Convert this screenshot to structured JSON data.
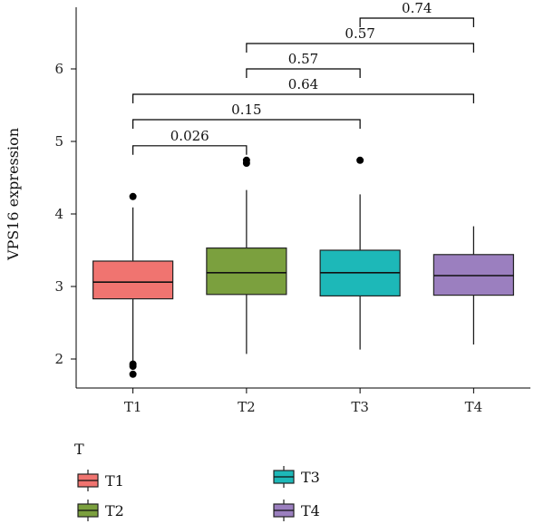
{
  "chart_data": {
    "type": "box",
    "title": "",
    "xlabel": "",
    "ylabel": "VPS16 expression",
    "ylim": [
      1.6,
      6.85
    ],
    "yticks": [
      2,
      3,
      4,
      5,
      6
    ],
    "categories": [
      "T1",
      "T2",
      "T3",
      "T4"
    ],
    "colors": [
      "#F07470",
      "#7BA03E",
      "#1DB8B8",
      "#9B7FBF"
    ],
    "boxes": [
      {
        "name": "T1",
        "min": 1.96,
        "q1": 2.83,
        "median": 3.06,
        "q3": 3.35,
        "max": 4.09,
        "outliers": [
          4.24,
          1.93,
          1.9,
          1.79
        ]
      },
      {
        "name": "T2",
        "min": 2.07,
        "q1": 2.89,
        "median": 3.19,
        "q3": 3.53,
        "max": 4.33,
        "outliers": [
          4.74,
          4.7
        ]
      },
      {
        "name": "T3",
        "min": 2.13,
        "q1": 2.87,
        "median": 3.19,
        "q3": 3.5,
        "max": 4.27,
        "outliers": [
          4.74
        ]
      },
      {
        "name": "T4",
        "min": 2.2,
        "q1": 2.88,
        "median": 3.15,
        "q3": 3.44,
        "max": 3.83,
        "outliers": []
      }
    ],
    "comparisons": [
      {
        "from": "T1",
        "to": "T2",
        "label": "0.026",
        "y": 4.94
      },
      {
        "from": "T1",
        "to": "T3",
        "label": "0.15",
        "y": 5.3
      },
      {
        "from": "T1",
        "to": "T4",
        "label": "0.64",
        "y": 5.65
      },
      {
        "from": "T2",
        "to": "T3",
        "label": "0.57",
        "y": 6.0
      },
      {
        "from": "T2",
        "to": "T4",
        "label": "0.57",
        "y": 6.35
      },
      {
        "from": "T3",
        "to": "T4",
        "label": "0.74",
        "y": 6.7
      }
    ],
    "legend": {
      "title": "T",
      "position": "bottom",
      "items": [
        "T1",
        "T2",
        "T3",
        "T4"
      ]
    },
    "grid": false
  }
}
